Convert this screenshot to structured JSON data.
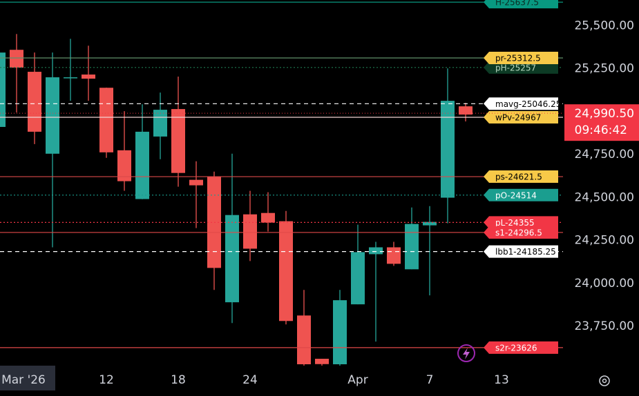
{
  "chart_data": {
    "type": "candlestick",
    "categories": [
      null,
      "Mar '26",
      null,
      null,
      null,
      null,
      "12",
      null,
      null,
      null,
      "18",
      null,
      null,
      null,
      "24",
      null,
      null,
      null,
      null,
      null,
      "Apr",
      null,
      null,
      null,
      "7",
      null,
      null,
      null,
      "13"
    ],
    "open": [
      24911,
      25360,
      25232,
      24755,
      25196,
      25216,
      25139,
      24775,
      24491,
      24855,
      25015,
      24603,
      24623,
      23890,
      24402,
      24410,
      24362,
      23813,
      23561,
      23529,
      23878,
      24170,
      24210,
      24082,
      24338,
      24499,
      25031,
      null,
      null
    ],
    "high": [
      25380,
      25452,
      25344,
      25344,
      25424,
      25384,
      25140,
      25003,
      25043,
      25111,
      25204,
      24711,
      24651,
      24755,
      24539,
      24531,
      24422,
      23962,
      23561,
      23962,
      24342,
      24242,
      24242,
      24442,
      24450,
      25252,
      25051,
      null,
      null
    ],
    "low": [
      24900,
      24995,
      24811,
      24210,
      25063,
      25063,
      24731,
      24539,
      24490,
      24723,
      24563,
      24322,
      23962,
      23769,
      24130,
      24302,
      23761,
      23520,
      23520,
      23520,
      23878,
      23661,
      24102,
      24082,
      23930,
      24350,
      24943,
      null,
      null
    ],
    "close": [
      25344,
      25256,
      24883,
      25200,
      25200,
      25192,
      24763,
      24595,
      24883,
      25011,
      24643,
      24571,
      24090,
      24398,
      24202,
      24354,
      23781,
      23529,
      23530,
      23902,
      24182,
      24210,
      24114,
      24346,
      24358,
      25063,
      24983,
      null,
      null
    ],
    "up_color": "#26a69a",
    "down_color": "#ef5350",
    "ylim": [
      23521,
      25650
    ],
    "yticks": [
      {
        "value": 23750,
        "label": "23,750.00"
      },
      {
        "value": 24000,
        "label": "24,000.00"
      },
      {
        "value": 24250,
        "label": "24,250.00"
      },
      {
        "value": 24500,
        "label": "24,500.00"
      },
      {
        "value": 24750,
        "label": "24,750.00"
      },
      {
        "value": 25250,
        "label": "25,250.00"
      },
      {
        "value": 25500,
        "label": "25,500.00"
      }
    ],
    "levels": [
      {
        "label": "H-25637.5",
        "value": 25637.5,
        "color": "#089981",
        "bg": "#089981",
        "text_color": "#0b2a22",
        "style": "solid"
      },
      {
        "label": "pH-25257",
        "value": 25257,
        "color": "#1f7a52",
        "bg": "#0d3b25",
        "text_color": "#b8d8c0",
        "style": "dotted"
      },
      {
        "label": "pr-25312.5",
        "value": 25312.5,
        "color": "#5f8f6a",
        "bg": "#f7c948",
        "text_color": "#000000",
        "style": "solid"
      },
      {
        "label": "mavg-25046.25",
        "value": 25046.25,
        "color": "#ffffff",
        "bg": "#ffffff",
        "text_color": "#000000",
        "style": "dashed"
      },
      {
        "label": "wPv-24967",
        "value": 24967,
        "color": "#f2d3d3",
        "bg": "#f7c948",
        "text_color": "#000000",
        "style": "solid"
      },
      {
        "label": "ps-24621.5",
        "value": 24621.5,
        "color": "#d94a4a",
        "bg": "#f7c948",
        "text_color": "#000000",
        "style": "solid"
      },
      {
        "label": "pO-24514",
        "value": 24514,
        "color": "#1a9e8f",
        "bg": "#1a9e8f",
        "text_color": "#ffffff",
        "style": "dotted"
      },
      {
        "label": "pL-24355",
        "value": 24355,
        "color": "#f23645",
        "bg": "#f23645",
        "text_color": "#ffffff",
        "style": "dotted"
      },
      {
        "label": "s1-24296.5",
        "value": 24296.5,
        "color": "#e04848",
        "bg": "#f23645",
        "text_color": "#ffffff",
        "style": "solid"
      },
      {
        "label": "lbb1-24185.25",
        "value": 24185.25,
        "color": "#ffffff",
        "bg": "#ffffff",
        "text_color": "#000000",
        "style": "dashed"
      },
      {
        "label": "s2r-23626",
        "value": 23626,
        "color": "#e04848",
        "bg": "#f23645",
        "text_color": "#ffffff",
        "style": "solid"
      }
    ],
    "price": 24990.5,
    "price_label": "24,990.50",
    "countdown": "09:46:42",
    "price_color": "#f23645"
  }
}
